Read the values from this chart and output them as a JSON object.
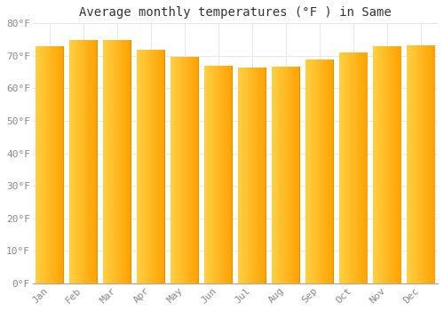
{
  "title": "Average monthly temperatures (°F ) in Same",
  "months": [
    "Jan",
    "Feb",
    "Mar",
    "Apr",
    "May",
    "Jun",
    "Jul",
    "Aug",
    "Sep",
    "Oct",
    "Nov",
    "Dec"
  ],
  "values": [
    73.0,
    75.0,
    75.0,
    72.0,
    69.8,
    67.0,
    66.5,
    66.8,
    69.0,
    71.0,
    73.0,
    73.2
  ],
  "bar_color_left": "#FFD040",
  "bar_color_right": "#FFA000",
  "bar_color_edge": "#E09000",
  "background_color": "#FFFFFF",
  "grid_color": "#E8E8E8",
  "ylim": [
    0,
    80
  ],
  "ytick_step": 10,
  "title_fontsize": 10,
  "tick_fontsize": 8,
  "font_family": "monospace",
  "bar_width": 0.85,
  "gradient_steps": 50
}
